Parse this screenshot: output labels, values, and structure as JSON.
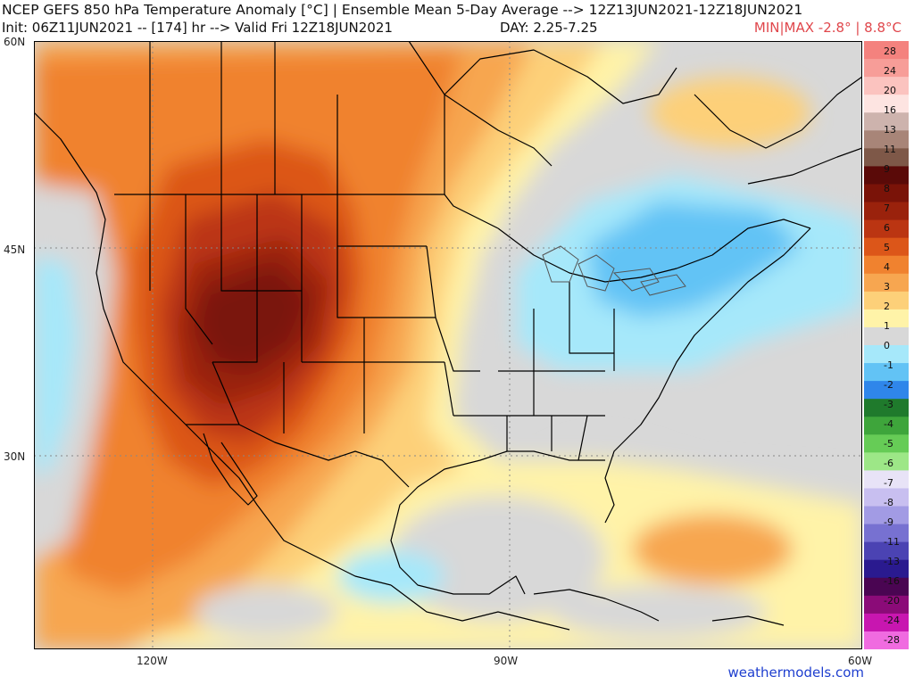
{
  "header": {
    "title": "NCEP GEFS 850 hPa Temperature Anomaly [°C] | Ensemble Mean 5-Day Average --> 12Z13JUN2021-12Z18JUN2021",
    "init": "Init: 06Z11JUN2021 -- [174] hr --> Valid Fri 12Z18JUN2021",
    "day": "DAY: 2.25-7.25",
    "minmax": "MIN|MAX -2.8° | 8.8°C"
  },
  "axes": {
    "lat_labels": [
      "60N",
      "45N",
      "30N"
    ],
    "lon_labels": [
      "120W",
      "90W",
      "60W"
    ]
  },
  "credit": "weathermodels.com",
  "legend": {
    "ticks": [
      "28",
      "24",
      "20",
      "16",
      "13",
      "11",
      "9",
      "8",
      "7",
      "6",
      "5",
      "4",
      "3",
      "2",
      "1",
      "0",
      "-1",
      "-2",
      "-3",
      "-4",
      "-5",
      "-6",
      "-7",
      "-8",
      "-9",
      "-11",
      "-13",
      "-16",
      "-20",
      "-24",
      "-28"
    ],
    "colors": [
      "#f4827e",
      "#f79d98",
      "#fbc3bf",
      "#fde4e1",
      "#cdb3ad",
      "#a88578",
      "#7e5848",
      "#5a0a08",
      "#7a1308",
      "#9a220c",
      "#bb3512",
      "#dc5619",
      "#f0822f",
      "#f7a650",
      "#fdd079",
      "#fff3a8",
      "#d8d8d8",
      "#a6e8fa",
      "#62c3f5",
      "#2f86ea",
      "#1f7a2c",
      "#3ea53b",
      "#66cc56",
      "#9de787",
      "#e8e3f7",
      "#c8bff0",
      "#a29be4",
      "#7771d1",
      "#4b43b3",
      "#2a1a8f",
      "#4a0552",
      "#8b0b78",
      "#c816b0",
      "#f06be0"
    ]
  },
  "map_colors": {
    "ocean": "#e0e0e0",
    "land": "#e0e0e0",
    "border": "#000000",
    "lakes": "#555555",
    "grid": "#888888"
  }
}
